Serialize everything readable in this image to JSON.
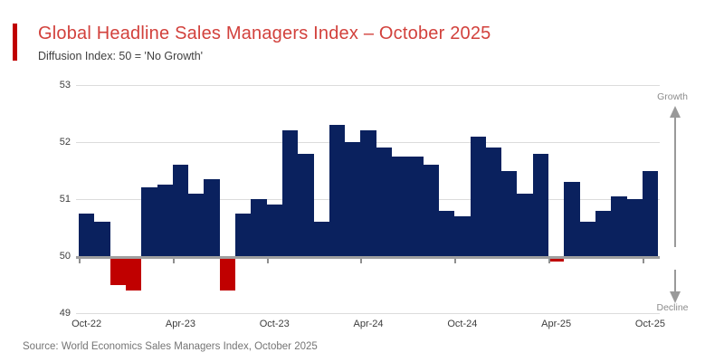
{
  "header": {
    "title": "Global Headline Sales Managers Index – October 2025",
    "subtitle": "Diffusion Index: 50 = 'No Growth'"
  },
  "annotations": {
    "growth": "Growth",
    "decline": "Decline"
  },
  "footer": {
    "source": "Source: World Economics Sales Managers Index, October 2025"
  },
  "colors": {
    "title_text": "#d2413c",
    "accent_bar": "#c00000",
    "bar_positive": "#0a215e",
    "bar_negative": "#c00000",
    "axis_line": "#9f9f9f",
    "gridline": "#dcdcdc",
    "axis_text": "#3d3d3d",
    "muted_text": "#8c8c8c",
    "source_text": "#757575"
  },
  "chart_data": {
    "type": "bar",
    "title": "Global Headline Sales Managers Index – October 2025",
    "subtitle": "Diffusion Index: 50 = 'No Growth'",
    "baseline": 50,
    "ylim": [
      49,
      53
    ],
    "yticks": [
      49,
      50,
      51,
      52,
      53
    ],
    "grid": true,
    "legend": false,
    "categories": [
      "Oct-22",
      "Nov-22",
      "Dec-22",
      "Jan-23",
      "Feb-23",
      "Mar-23",
      "Apr-23",
      "May-23",
      "Jun-23",
      "Jul-23",
      "Aug-23",
      "Sep-23",
      "Oct-23",
      "Nov-23",
      "Dec-23",
      "Jan-24",
      "Feb-24",
      "Mar-24",
      "Apr-24",
      "May-24",
      "Jun-24",
      "Jul-24",
      "Aug-24",
      "Sep-24",
      "Oct-24",
      "Nov-24",
      "Dec-24",
      "Jan-25",
      "Feb-25",
      "Mar-25",
      "Apr-25",
      "May-25",
      "Jun-25",
      "Jul-25",
      "Aug-25",
      "Sep-25",
      "Oct-25"
    ],
    "values": [
      50.75,
      50.6,
      49.5,
      49.4,
      51.2,
      51.25,
      51.6,
      51.1,
      51.35,
      49.4,
      50.75,
      51.0,
      50.9,
      52.2,
      51.8,
      50.6,
      52.3,
      52.0,
      52.2,
      51.9,
      51.75,
      51.75,
      51.6,
      50.8,
      50.7,
      52.1,
      51.9,
      51.5,
      51.1,
      51.8,
      49.9,
      51.3,
      50.6,
      50.8,
      51.05,
      51.0,
      51.5
    ],
    "xtick_labels": [
      "Oct-22",
      "Apr-23",
      "Oct-23",
      "Apr-24",
      "Oct-24",
      "Apr-25",
      "Oct-25"
    ],
    "xtick_indices": [
      0,
      6,
      12,
      18,
      24,
      30,
      36
    ],
    "positive_color": "#0a215e",
    "negative_color": "#c00000",
    "annotation_up": "Growth",
    "annotation_down": "Decline"
  }
}
